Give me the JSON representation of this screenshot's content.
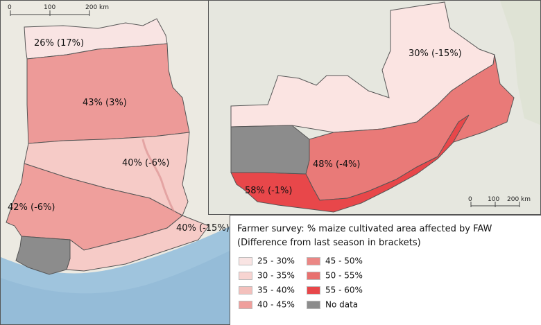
{
  "left_map": {
    "scalebar": [
      "0",
      "100",
      "200 km"
    ],
    "regions": [
      {
        "key": "north",
        "label": "26%  (17%)",
        "color": "#f9e4e3"
      },
      {
        "key": "upper",
        "label": "43%  (3%)",
        "color": "#ed9a98"
      },
      {
        "key": "east",
        "label": "40%  (-6%)",
        "color": "#f6cbc7"
      },
      {
        "key": "west",
        "label": "42%  (-6%)",
        "color": "#ef9f9c"
      },
      {
        "key": "coast",
        "label": "40%  (-15%)",
        "color": "#f6cbc7"
      }
    ]
  },
  "right_map": {
    "scalebar": [
      "0",
      "100",
      "200 km"
    ],
    "regions": [
      {
        "key": "north",
        "label": "30%  (-15%)",
        "color": "#fbe4e2"
      },
      {
        "key": "band",
        "label": "48%  (-4%)",
        "color": "#e97a78"
      },
      {
        "key": "south",
        "label": "58%  (-1%)",
        "color": "#e8474a"
      }
    ]
  },
  "legend": {
    "title_line1": "Farmer survey:  % maize cultivated area affected by FAW",
    "title_line2": "(Difference from last season in brackets)",
    "items": [
      {
        "label": "25 - 30%",
        "color": "#f9e4e3"
      },
      {
        "label": "30 - 35%",
        "color": "#f7d4d1"
      },
      {
        "label": "35 - 40%",
        "color": "#f3c0bc"
      },
      {
        "label": "40 - 45%",
        "color": "#ef9f9c"
      },
      {
        "label": "45 - 50%",
        "color": "#eb8785"
      },
      {
        "label": "50 - 55%",
        "color": "#e8716f"
      },
      {
        "label": "55 - 60%",
        "color": "#e8474a"
      },
      {
        "label": "No data",
        "color": "#8c8c8c"
      }
    ]
  }
}
